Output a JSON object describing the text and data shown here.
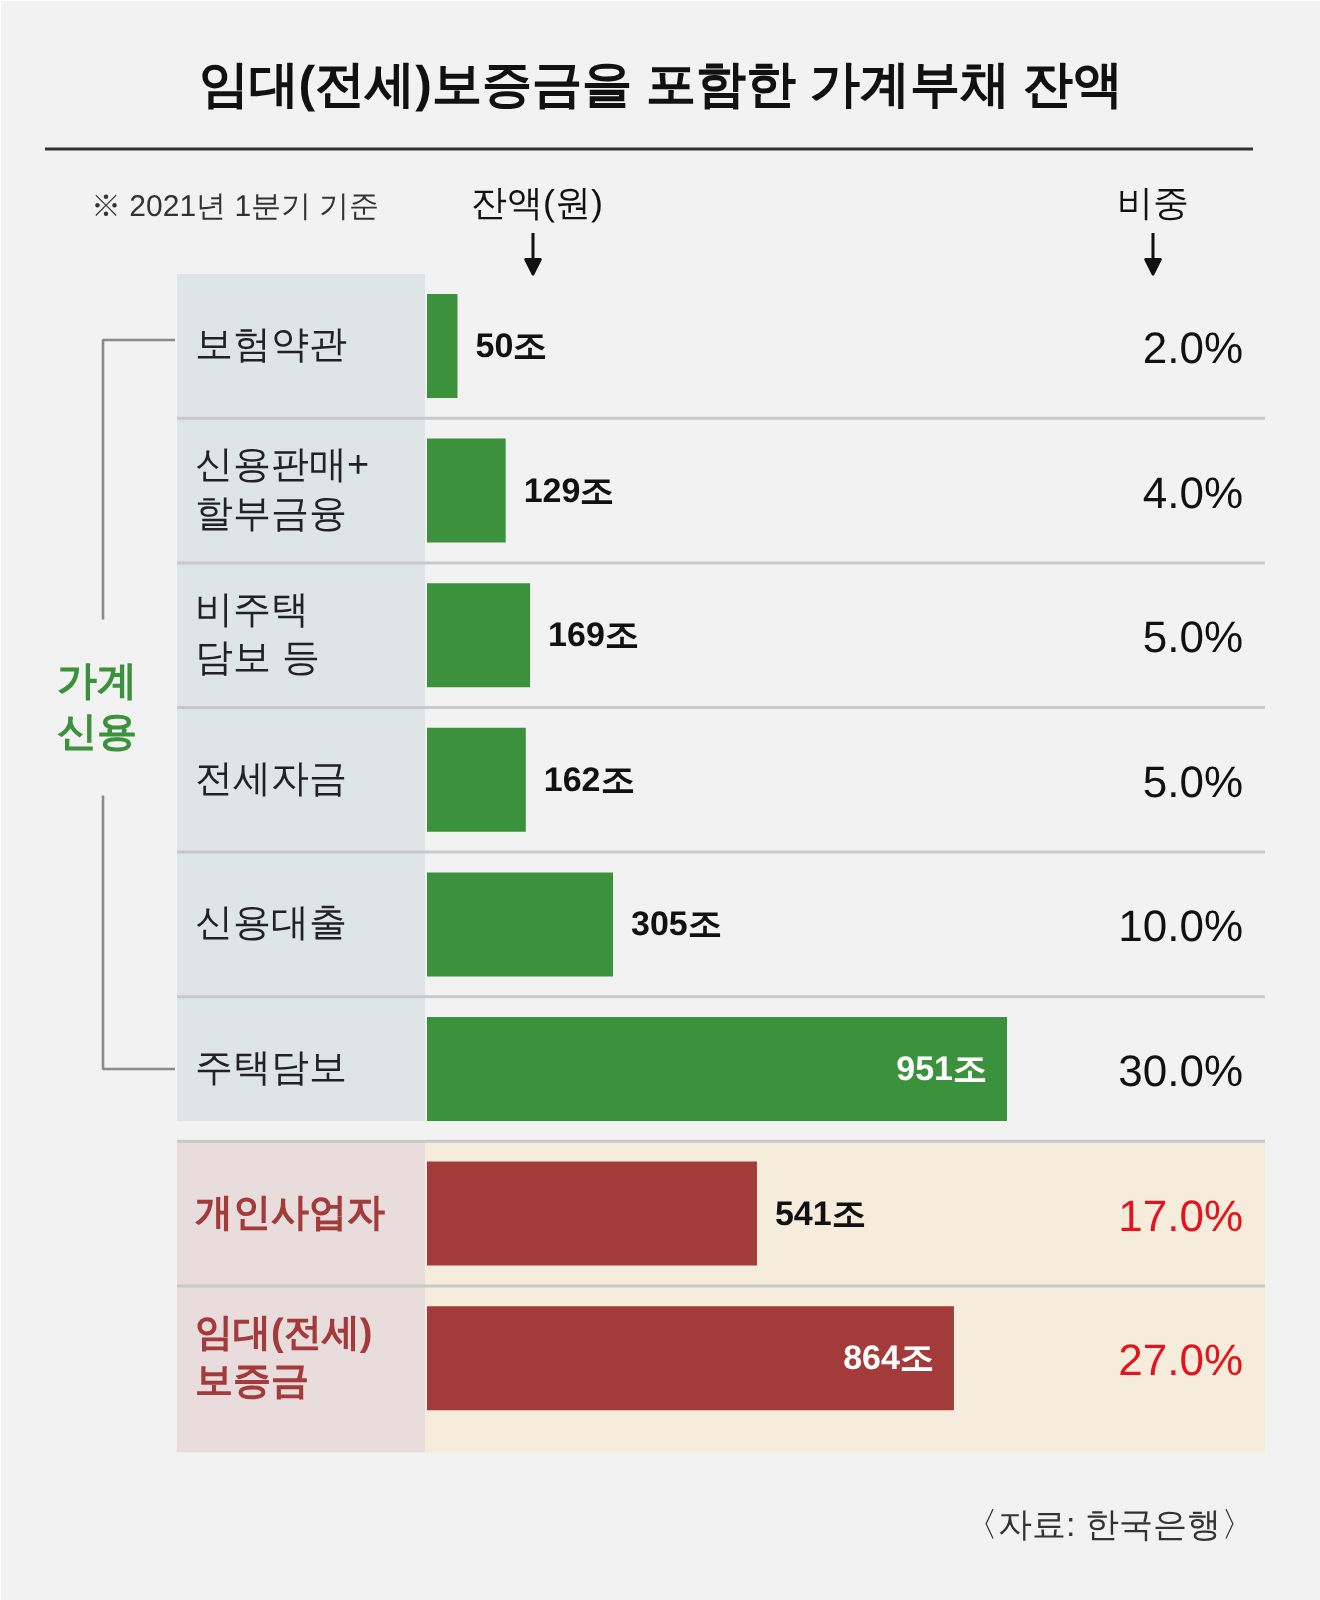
{
  "chart_data": {
    "type": "bar",
    "orientation": "horizontal",
    "title": "임대(전세)보증금을 포함한 가계부채 잔액",
    "xlabel": "잔액(원)",
    "categories": [
      "보험약관",
      "신용판매+\n할부금융",
      "비주택\n담보 등",
      "전세자금",
      "신용대출",
      "주택담보",
      "개인사업자",
      "임대(전세)\n보증금"
    ],
    "values": [
      50,
      129,
      169,
      162,
      305,
      951,
      541,
      864
    ],
    "colors": [
      "#3c923c",
      "#3c923c",
      "#3c923c",
      "#3c923c",
      "#3c923c",
      "#3c923c",
      "#a33b3b",
      "#a33b3b"
    ],
    "value_labels": [
      "50조",
      "129조",
      "169조",
      "162조",
      "305조",
      "951조",
      "541조",
      "864조"
    ],
    "bands": [
      {
        "axis": "y",
        "from": "개인사업자",
        "to": "임대(전세)\n보증금",
        "color": "#f5ecdc"
      }
    ],
    "annotations": [
      "※ 2021년 1분기 기준",
      "비중",
      "2.0%",
      "4.0%",
      "5.0%",
      "5.0%",
      "10.0%",
      "30.0%",
      "17.0%",
      "27.0%",
      "가계\n신용",
      "〈자료: 한국은행〉"
    ]
  }
}
